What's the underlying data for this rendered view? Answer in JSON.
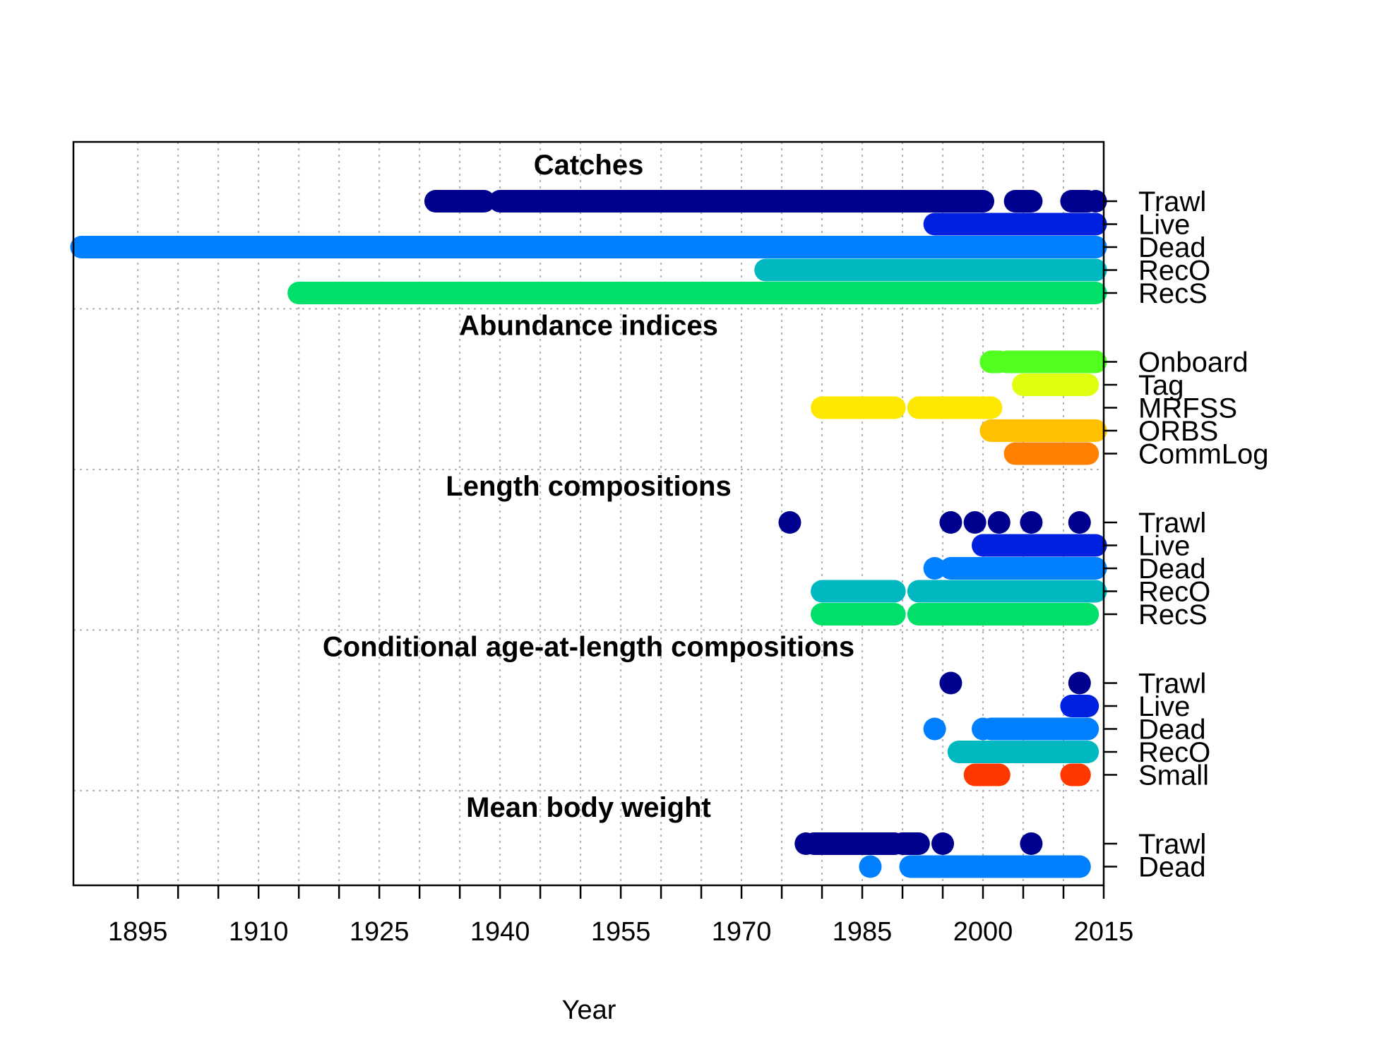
{
  "chart_data": {
    "type": "timeline",
    "xlabel": "Year",
    "xlim": [
      1887,
      2015
    ],
    "x_ticks": [
      1895,
      1910,
      1925,
      1940,
      1955,
      1970,
      1985,
      2000,
      2015
    ],
    "x_tick_labels": [
      "1895",
      "1910",
      "1925",
      "1940",
      "1955",
      "1970",
      "1985",
      "2000",
      "2015"
    ],
    "x_minor_tick_step": 5,
    "grid": true,
    "sections": [
      {
        "title": "Catches",
        "series": [
          {
            "name": "Trawl",
            "color": "#00008F",
            "segments": [
              [
                1932,
                1938
              ],
              [
                1940,
                2000
              ],
              [
                2004,
                2006
              ],
              [
                2011,
                2013
              ],
              [
                2014,
                2014
              ]
            ]
          },
          {
            "name": "Live",
            "color": "#0020E0",
            "segments": [
              [
                1994,
                2014
              ]
            ]
          },
          {
            "name": "Dead",
            "color": "#0080FF",
            "segments": [
              [
                1888,
                2014
              ]
            ]
          },
          {
            "name": "RecO",
            "color": "#00B8C0",
            "segments": [
              [
                1973,
                2014
              ]
            ]
          },
          {
            "name": "RecS",
            "color": "#00E068",
            "segments": [
              [
                1915,
                2014
              ]
            ]
          }
        ]
      },
      {
        "title": "Abundance indices",
        "series": [
          {
            "name": "Onboard",
            "color": "#50FF20",
            "segments": [
              [
                2001,
                2002
              ],
              [
                2003,
                2014
              ]
            ]
          },
          {
            "name": "Tag",
            "color": "#E0FF10",
            "segments": [
              [
                2005,
                2013
              ]
            ]
          },
          {
            "name": "MRFSS",
            "color": "#FFE800",
            "segments": [
              [
                1980,
                1989
              ],
              [
                1992,
                2001
              ]
            ]
          },
          {
            "name": "ORBS",
            "color": "#FFC000",
            "segments": [
              [
                2001,
                2014
              ]
            ]
          },
          {
            "name": "CommLog",
            "color": "#FF8000",
            "segments": [
              [
                2004,
                2013
              ]
            ]
          }
        ]
      },
      {
        "title": "Length compositions",
        "series": [
          {
            "name": "Trawl",
            "color": "#00008F",
            "segments": [
              [
                1976,
                1976
              ],
              [
                1996,
                1996
              ],
              [
                1999,
                1999
              ],
              [
                2002,
                2002
              ],
              [
                2006,
                2006
              ],
              [
                2012,
                2012
              ]
            ]
          },
          {
            "name": "Live",
            "color": "#0020E0",
            "segments": [
              [
                2000,
                2014
              ]
            ]
          },
          {
            "name": "Dead",
            "color": "#0080FF",
            "segments": [
              [
                1994,
                1994
              ],
              [
                1996,
                2014
              ]
            ]
          },
          {
            "name": "RecO",
            "color": "#00B8C0",
            "segments": [
              [
                1980,
                1989
              ],
              [
                1992,
                2014
              ]
            ]
          },
          {
            "name": "RecS",
            "color": "#00E068",
            "segments": [
              [
                1980,
                1989
              ],
              [
                1992,
                2013
              ]
            ]
          }
        ]
      },
      {
        "title": "Conditional age-at-length compositions",
        "series": [
          {
            "name": "Trawl",
            "color": "#00008F",
            "segments": [
              [
                1996,
                1996
              ],
              [
                2012,
                2012
              ]
            ]
          },
          {
            "name": "Live",
            "color": "#0020E0",
            "segments": [
              [
                2011,
                2013
              ]
            ]
          },
          {
            "name": "Dead",
            "color": "#0080FF",
            "segments": [
              [
                1994,
                1994
              ],
              [
                2000,
                2000
              ],
              [
                2001,
                2013
              ]
            ]
          },
          {
            "name": "RecO",
            "color": "#00B8C0",
            "segments": [
              [
                1997,
                2013
              ]
            ]
          },
          {
            "name": "Small",
            "color": "#FF3800",
            "segments": [
              [
                1999,
                2002
              ],
              [
                2011,
                2012
              ]
            ]
          }
        ]
      },
      {
        "title": "Mean body weight",
        "series": [
          {
            "name": "Trawl",
            "color": "#00008F",
            "segments": [
              [
                1978,
                1978
              ],
              [
                1979,
                1989
              ],
              [
                1990,
                1992
              ],
              [
                1995,
                1995
              ],
              [
                2006,
                2006
              ]
            ]
          },
          {
            "name": "Dead",
            "color": "#0080FF",
            "segments": [
              [
                1986,
                1986
              ],
              [
                1991,
                2012
              ]
            ]
          }
        ]
      }
    ]
  }
}
